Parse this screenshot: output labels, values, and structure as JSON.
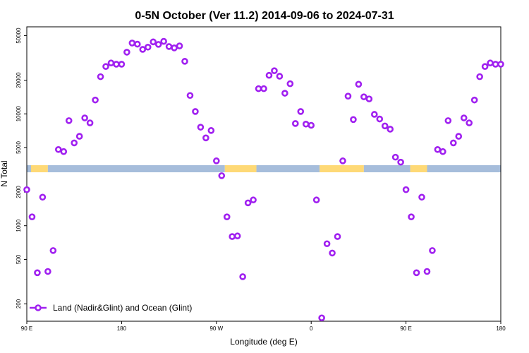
{
  "chart_data": {
    "type": "scatter",
    "title": "0-5N October (Ver 11.2)   2014-09-06 to 2024-07-31",
    "xlabel": "Longitude (deg E)",
    "ylabel": "N Total",
    "x_scale": "longitude, wrapping from 90 E through 180 to 180",
    "y_scale": "log",
    "ylim": [
      140,
      60000
    ],
    "x_ticks": [
      "90 E",
      "180",
      "90 W",
      "0",
      "90 E",
      "180"
    ],
    "y_ticks": [
      "200",
      "500",
      "1000",
      "2000",
      "5000",
      "10000",
      "20000",
      "50000"
    ],
    "y_tick_values": [
      200,
      500,
      1000,
      2000,
      5000,
      10000,
      20000,
      50000
    ],
    "legend": {
      "position": "bottom-left"
    },
    "marker_color": "#a020f0",
    "band_colors": {
      "ocean": "#a6bddb",
      "land": "#fed976"
    },
    "series": [
      {
        "name": "Land (Nadir&Glint) and Ocean (Glint)",
        "x": [
          90,
          95,
          100,
          105,
          110,
          115,
          120,
          125,
          130,
          135,
          140,
          145,
          150,
          155,
          160,
          165,
          170,
          175,
          180,
          185,
          190,
          195,
          200,
          205,
          210,
          215,
          220,
          225,
          230,
          235,
          240,
          245,
          250,
          255,
          260,
          265,
          270,
          275,
          280,
          285,
          290,
          295,
          300,
          305,
          310,
          315,
          320,
          325,
          330,
          335,
          340,
          345,
          350,
          355,
          360,
          365,
          370,
          375,
          380,
          385,
          390,
          395,
          400,
          405,
          410,
          415,
          420,
          425,
          430,
          435,
          440,
          445,
          450,
          455,
          460,
          465,
          470,
          475,
          480,
          485,
          490,
          495,
          500,
          505,
          510,
          515,
          520,
          525,
          530,
          535,
          540
        ],
        "y": [
          2100,
          1200,
          380,
          1800,
          390,
          600,
          4800,
          4600,
          8700,
          5500,
          6300,
          9200,
          8300,
          13300,
          21500,
          26500,
          28500,
          27800,
          27800,
          35600,
          43000,
          42000,
          37700,
          39500,
          44000,
          41800,
          44500,
          40000,
          38900,
          40500,
          29500,
          14600,
          10500,
          7600,
          6100,
          7100,
          3800,
          2800,
          1200,
          800,
          810,
          350,
          1600,
          1700,
          16800,
          16800,
          22100,
          24300,
          21700,
          15300,
          18600,
          8200,
          10500,
          8100,
          7900,
          1700,
          150,
          690,
          570,
          800,
          3800,
          14400,
          8900,
          18400,
          14200,
          13600,
          9900,
          9000,
          7800,
          7300,
          4100,
          3700,
          2100,
          1200,
          380,
          1800,
          390,
          600,
          4800,
          4600,
          8700,
          5500,
          6300,
          9200,
          8300,
          13300,
          21500,
          26500,
          28500,
          27800,
          27800
        ]
      }
    ],
    "surface_band": {
      "segments": [
        {
          "type": "ocean",
          "from": 90,
          "to": 94
        },
        {
          "type": "land",
          "from": 94,
          "to": 110
        },
        {
          "type": "ocean",
          "from": 110,
          "to": 278
        },
        {
          "type": "land",
          "from": 278,
          "to": 308
        },
        {
          "type": "ocean",
          "from": 308,
          "to": 368
        },
        {
          "type": "land",
          "from": 368,
          "to": 410
        },
        {
          "type": "ocean",
          "from": 410,
          "to": 454
        },
        {
          "type": "land",
          "from": 454,
          "to": 470
        },
        {
          "type": "ocean",
          "from": 470,
          "to": 540
        }
      ]
    }
  }
}
